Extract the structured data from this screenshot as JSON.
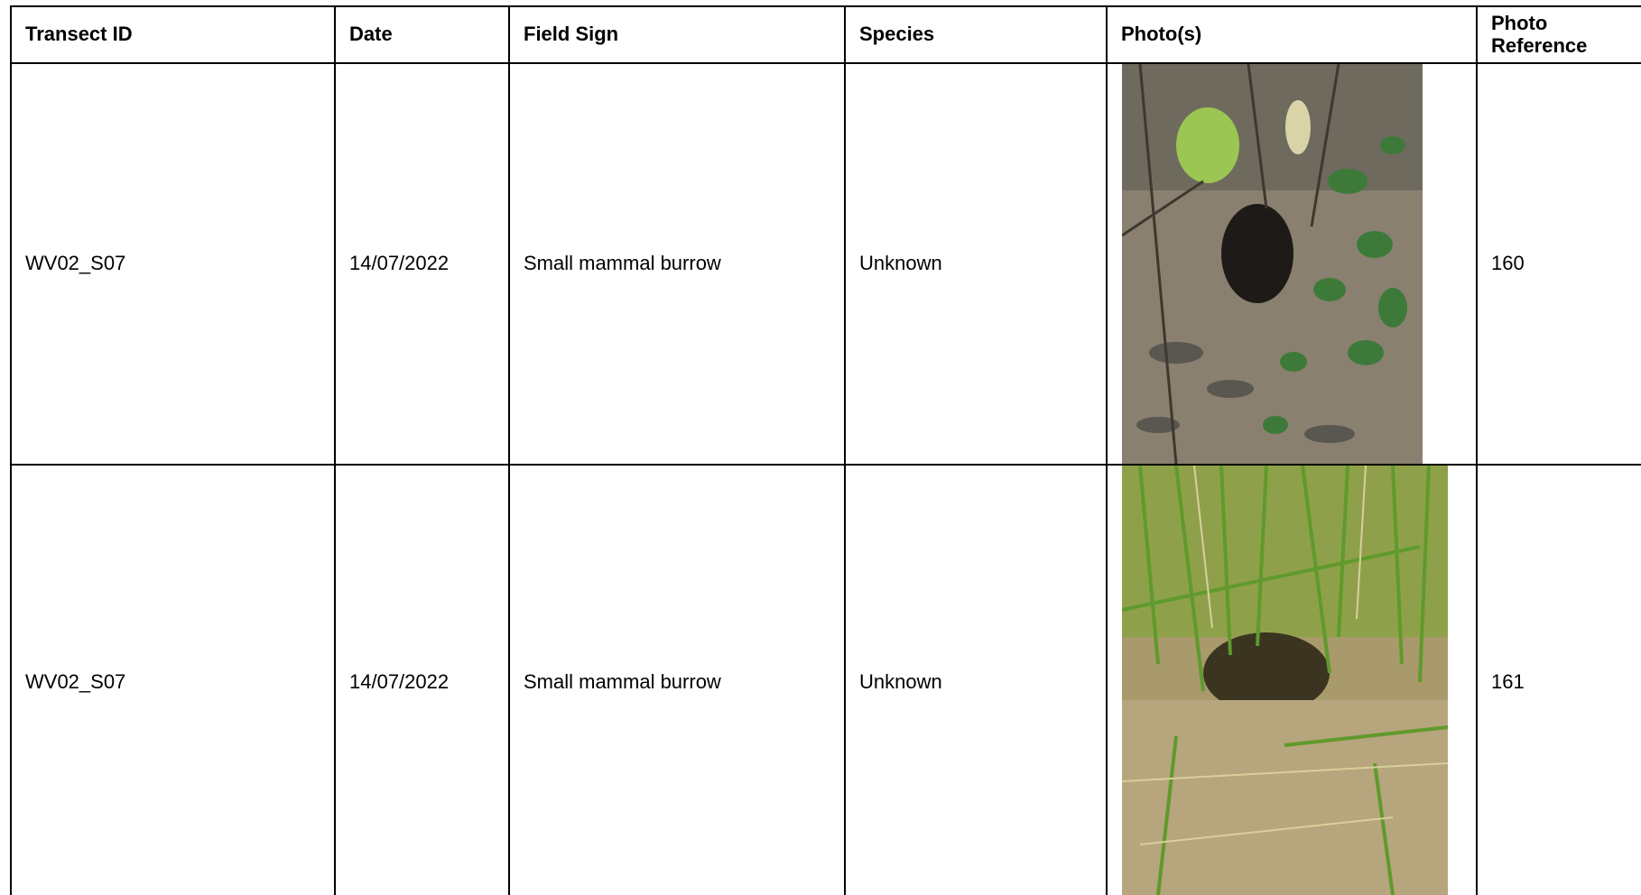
{
  "table": {
    "headers": {
      "transect_id": "Transect ID",
      "date": "Date",
      "field_sign": "Field Sign",
      "species": "Species",
      "photos": "Photo(s)",
      "photo_reference": "Photo Reference"
    },
    "rows": [
      {
        "transect_id": "WV02_S07",
        "date": "14/07/2022",
        "field_sign": "Small mammal burrow",
        "species": "Unknown",
        "photo_reference": "160"
      },
      {
        "transect_id": "WV02_S07",
        "date": "14/07/2022",
        "field_sign": "Small mammal burrow",
        "species": "Unknown",
        "photo_reference": "161"
      }
    ]
  }
}
